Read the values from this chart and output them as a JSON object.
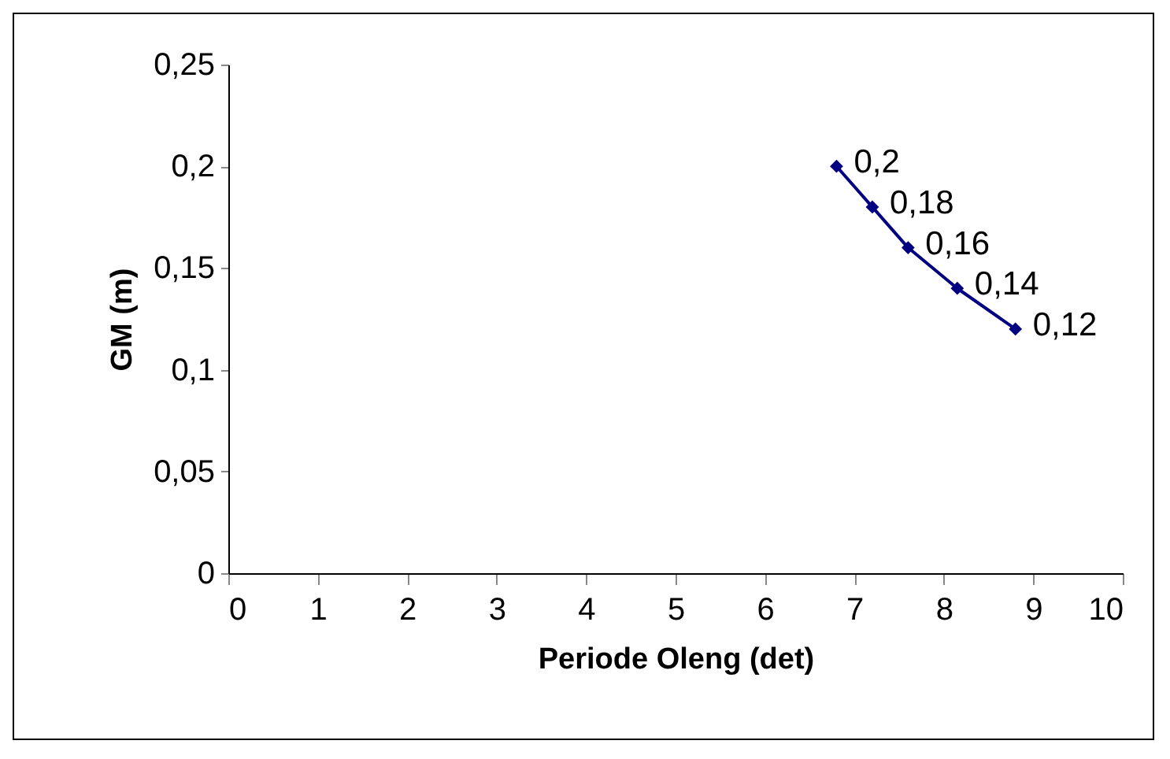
{
  "chart_data": {
    "type": "line",
    "xlabel": "Periode Oleng (det)",
    "ylabel": "GM (m)",
    "x": [
      6.8,
      7.2,
      7.6,
      8.15,
      8.8
    ],
    "series": [
      {
        "color": "#000080",
        "values": [
          0.2,
          0.18,
          0.16,
          0.14,
          0.12
        ],
        "value_labels": [
          "0,2",
          "0,18",
          "0,16",
          "0,14",
          "0,12"
        ]
      }
    ],
    "xlim": [
      0,
      10
    ],
    "xticks": [
      0,
      1,
      2,
      3,
      4,
      5,
      6,
      7,
      8,
      9,
      10
    ],
    "ylim": [
      0,
      0.25
    ],
    "yticks": [
      0,
      {
        "value": 0.05,
        "label": "0,05"
      },
      {
        "value": 0.1,
        "label": "0,1"
      },
      {
        "value": 0.15,
        "label": "0,15"
      },
      {
        "value": 0.2,
        "label": "0,2"
      },
      {
        "value": 0.25,
        "label": "0,25"
      }
    ],
    "marker": "diamond",
    "line_style": "solid"
  }
}
